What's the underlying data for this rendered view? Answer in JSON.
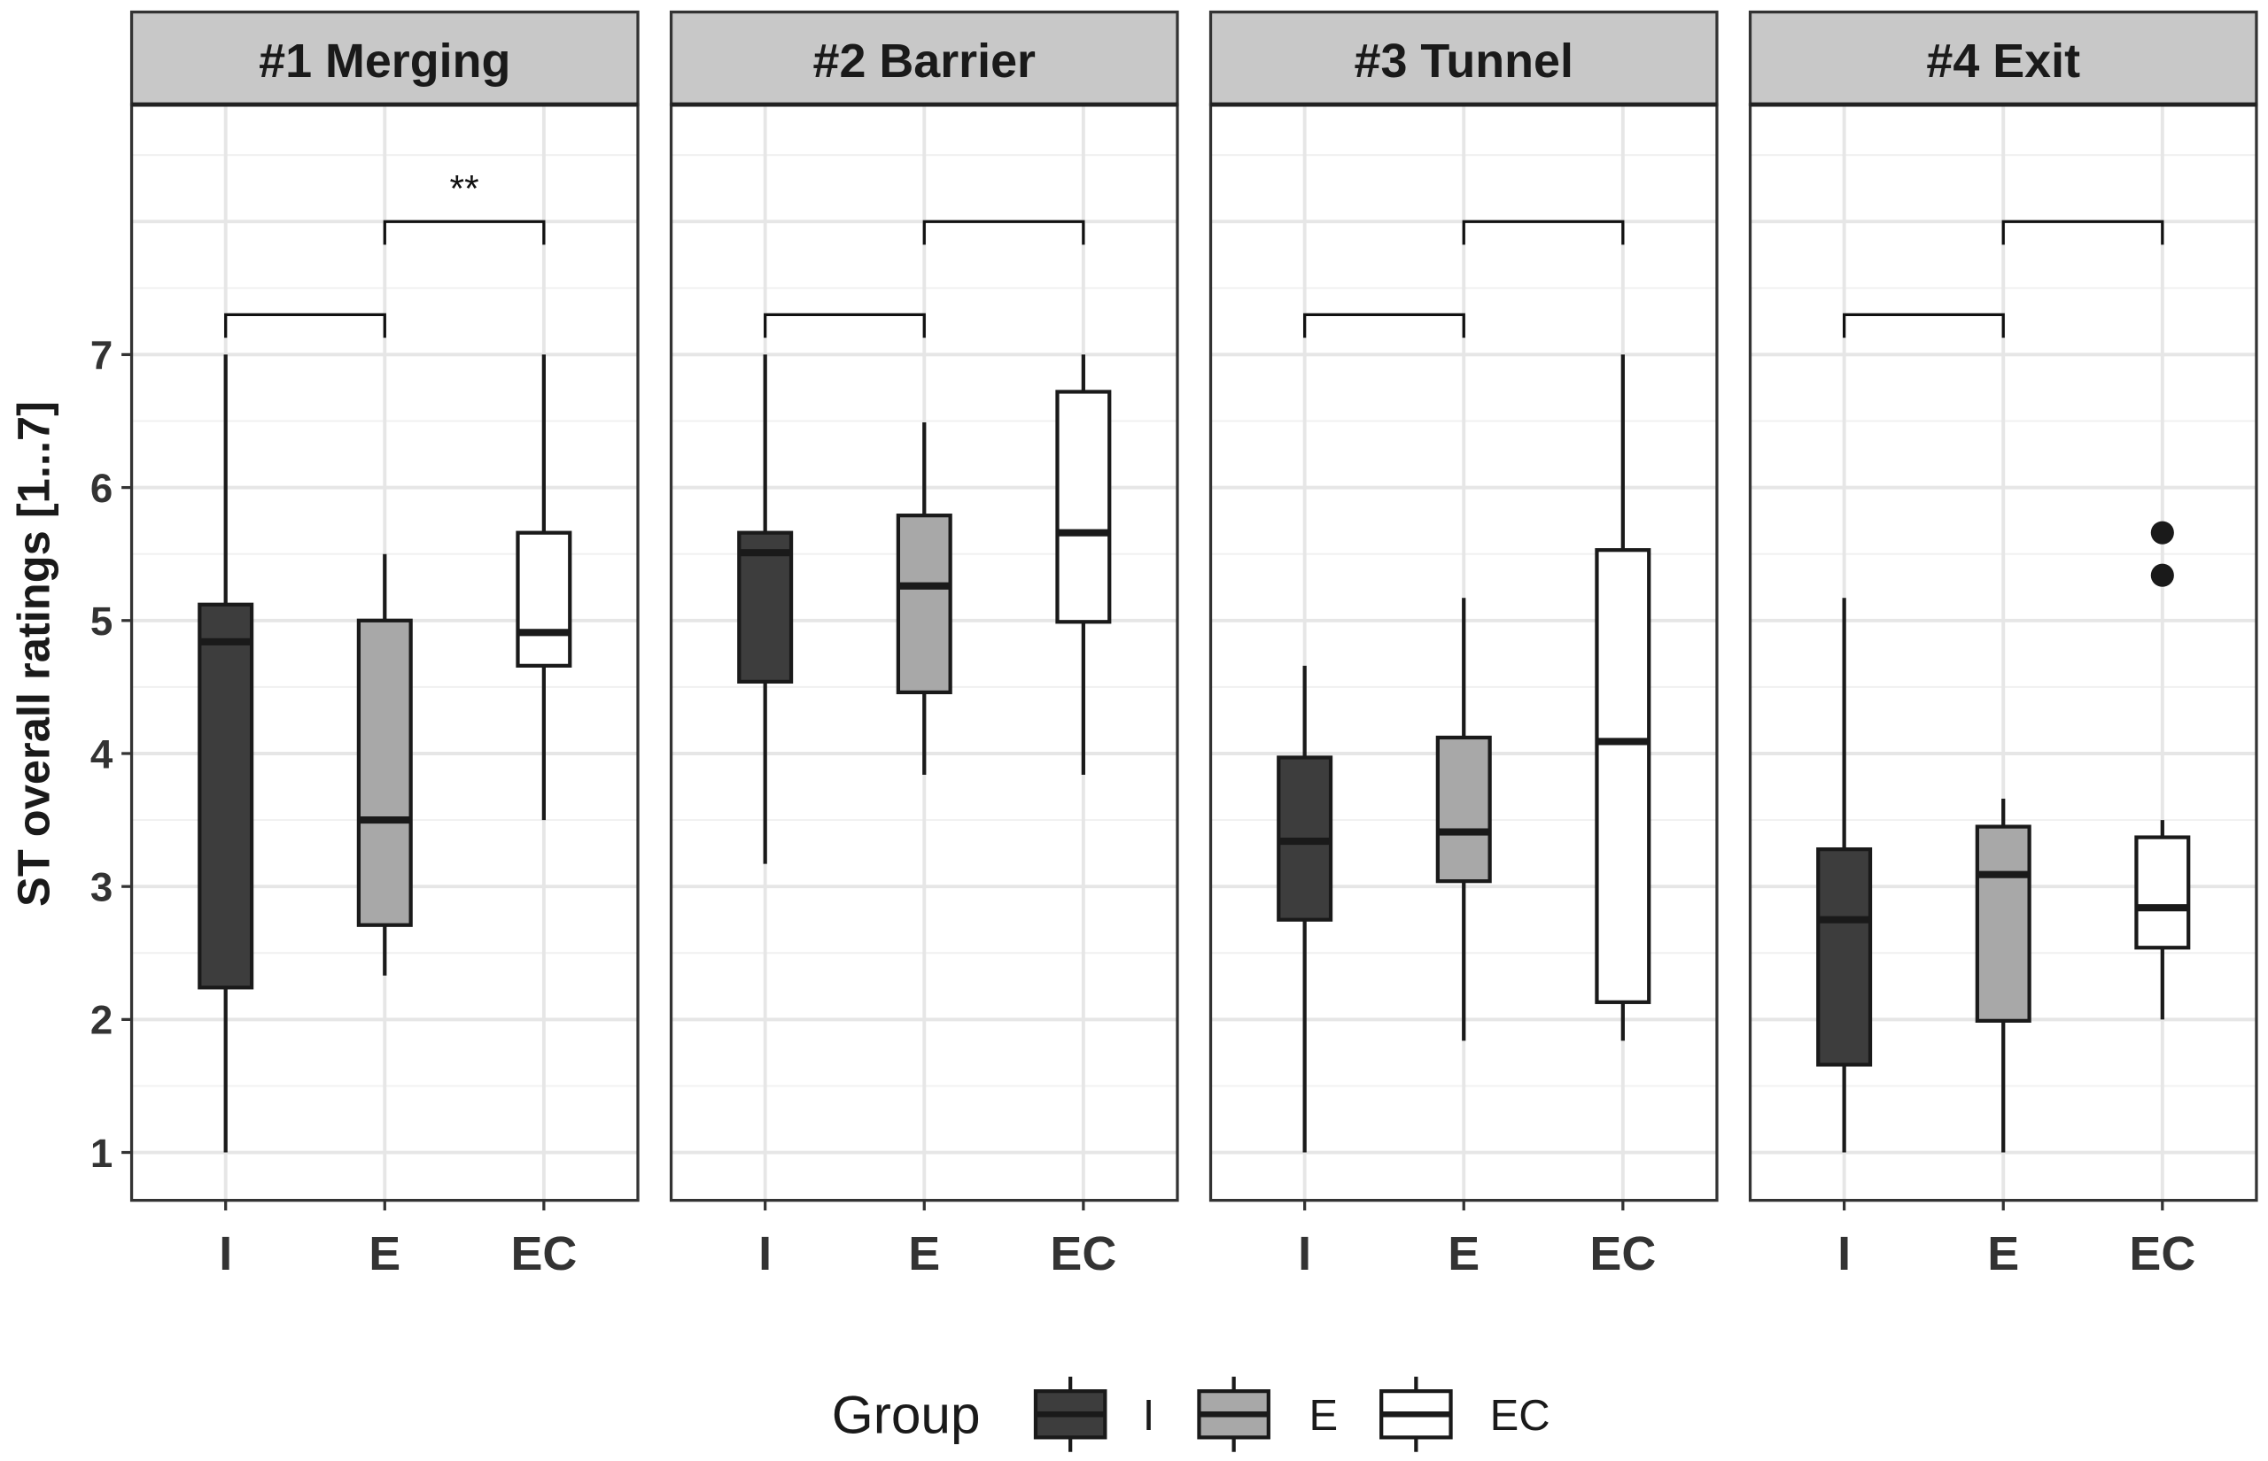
{
  "chart_data": {
    "type": "boxplot",
    "ylabel": "ST overall ratings [1...7]",
    "ylim": [
      0.64,
      8.88
    ],
    "yticks": [
      "1",
      "2",
      "3",
      "4",
      "5",
      "6",
      "7"
    ],
    "categories": [
      "I",
      "E",
      "EC"
    ],
    "legend": {
      "title": "Group",
      "entries": [
        "I",
        "E",
        "EC"
      ],
      "placement": "bottom"
    },
    "colors": {
      "I": "#3d3d3d",
      "E": "#a8a8a8",
      "EC": "#ffffff",
      "strip": "#c8c8c8",
      "grid": "#e6e6e6"
    },
    "panels": [
      {
        "title": "#1 Merging",
        "boxes": [
          {
            "group": "I",
            "min": 1.0,
            "q1": 2.24,
            "median": 4.84,
            "q3": 5.12,
            "max": 7.0,
            "outliers": []
          },
          {
            "group": "E",
            "min": 2.33,
            "q1": 2.71,
            "median": 3.5,
            "q3": 5.0,
            "max": 5.5,
            "outliers": []
          },
          {
            "group": "EC",
            "min": 3.5,
            "q1": 4.66,
            "median": 4.91,
            "q3": 5.66,
            "max": 7.0,
            "outliers": []
          }
        ],
        "brackets": [
          {
            "from": "I",
            "to": "E",
            "y": 7.3,
            "label": ""
          },
          {
            "from": "E",
            "to": "EC",
            "y": 8.0,
            "label": "**"
          }
        ]
      },
      {
        "title": "#2 Barrier",
        "boxes": [
          {
            "group": "I",
            "min": 3.17,
            "q1": 4.54,
            "median": 5.51,
            "q3": 5.66,
            "max": 7.0,
            "outliers": []
          },
          {
            "group": "E",
            "min": 3.84,
            "q1": 4.46,
            "median": 5.26,
            "q3": 5.79,
            "max": 6.49,
            "outliers": []
          },
          {
            "group": "EC",
            "min": 3.84,
            "q1": 4.99,
            "median": 5.66,
            "q3": 6.72,
            "max": 7.0,
            "outliers": []
          }
        ],
        "brackets": [
          {
            "from": "I",
            "to": "E",
            "y": 7.3,
            "label": ""
          },
          {
            "from": "E",
            "to": "EC",
            "y": 8.0,
            "label": ""
          }
        ]
      },
      {
        "title": "#3 Tunnel",
        "boxes": [
          {
            "group": "I",
            "min": 1.0,
            "q1": 2.75,
            "median": 3.34,
            "q3": 3.97,
            "max": 4.66,
            "outliers": []
          },
          {
            "group": "E",
            "min": 1.84,
            "q1": 3.04,
            "median": 3.41,
            "q3": 4.12,
            "max": 5.17,
            "outliers": []
          },
          {
            "group": "EC",
            "min": 1.84,
            "q1": 2.13,
            "median": 4.09,
            "q3": 5.53,
            "max": 7.0,
            "outliers": []
          }
        ],
        "brackets": [
          {
            "from": "I",
            "to": "E",
            "y": 7.3,
            "label": ""
          },
          {
            "from": "E",
            "to": "EC",
            "y": 8.0,
            "label": ""
          }
        ]
      },
      {
        "title": "#4 Exit",
        "boxes": [
          {
            "group": "I",
            "min": 1.0,
            "q1": 1.66,
            "median": 2.75,
            "q3": 3.28,
            "max": 5.17,
            "outliers": []
          },
          {
            "group": "E",
            "min": 1.0,
            "q1": 1.99,
            "median": 3.09,
            "q3": 3.45,
            "max": 3.66,
            "outliers": []
          },
          {
            "group": "EC",
            "min": 2.0,
            "q1": 2.54,
            "median": 2.84,
            "q3": 3.37,
            "max": 3.5,
            "outliers": [
              5.66,
              5.34
            ]
          }
        ],
        "brackets": [
          {
            "from": "I",
            "to": "E",
            "y": 7.3,
            "label": ""
          },
          {
            "from": "E",
            "to": "EC",
            "y": 8.0,
            "label": ""
          }
        ]
      }
    ]
  }
}
